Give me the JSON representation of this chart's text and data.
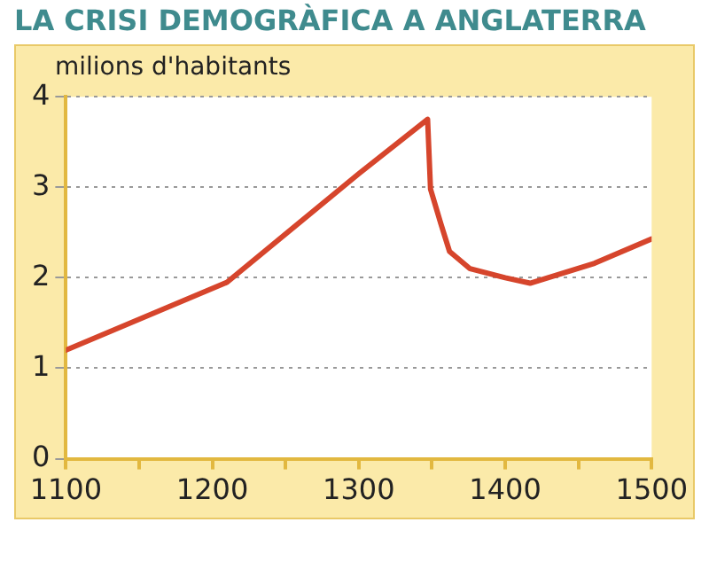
{
  "chart_data": {
    "type": "line",
    "title": "LA CRISI DEMOGRÀFICA A ANGLATERRA",
    "ylabel": "milions d'habitants",
    "series": [
      {
        "color": "#d6452c",
        "x": [
          1100,
          1210,
          1300,
          1347,
          1349,
          1356,
          1362,
          1376,
          1400,
          1417,
          1461,
          1500
        ],
        "values": [
          1.2,
          1.95,
          3.15,
          3.75,
          2.98,
          2.6,
          2.29,
          2.1,
          2.0,
          1.94,
          2.16,
          2.43
        ]
      }
    ],
    "xlim": [
      1100,
      1500
    ],
    "xticks": [
      1100,
      {
        "value": 1150,
        "label": null
      },
      1200,
      {
        "value": 1250,
        "label": null
      },
      1300,
      {
        "value": 1350,
        "label": null
      },
      1400,
      {
        "value": 1450,
        "label": null
      },
      1500
    ],
    "ylim": [
      0,
      4
    ],
    "yticks": [
      0,
      1,
      2,
      3,
      4
    ],
    "grid": "y",
    "legend": false,
    "marker": "none",
    "line_style": "solid"
  }
}
